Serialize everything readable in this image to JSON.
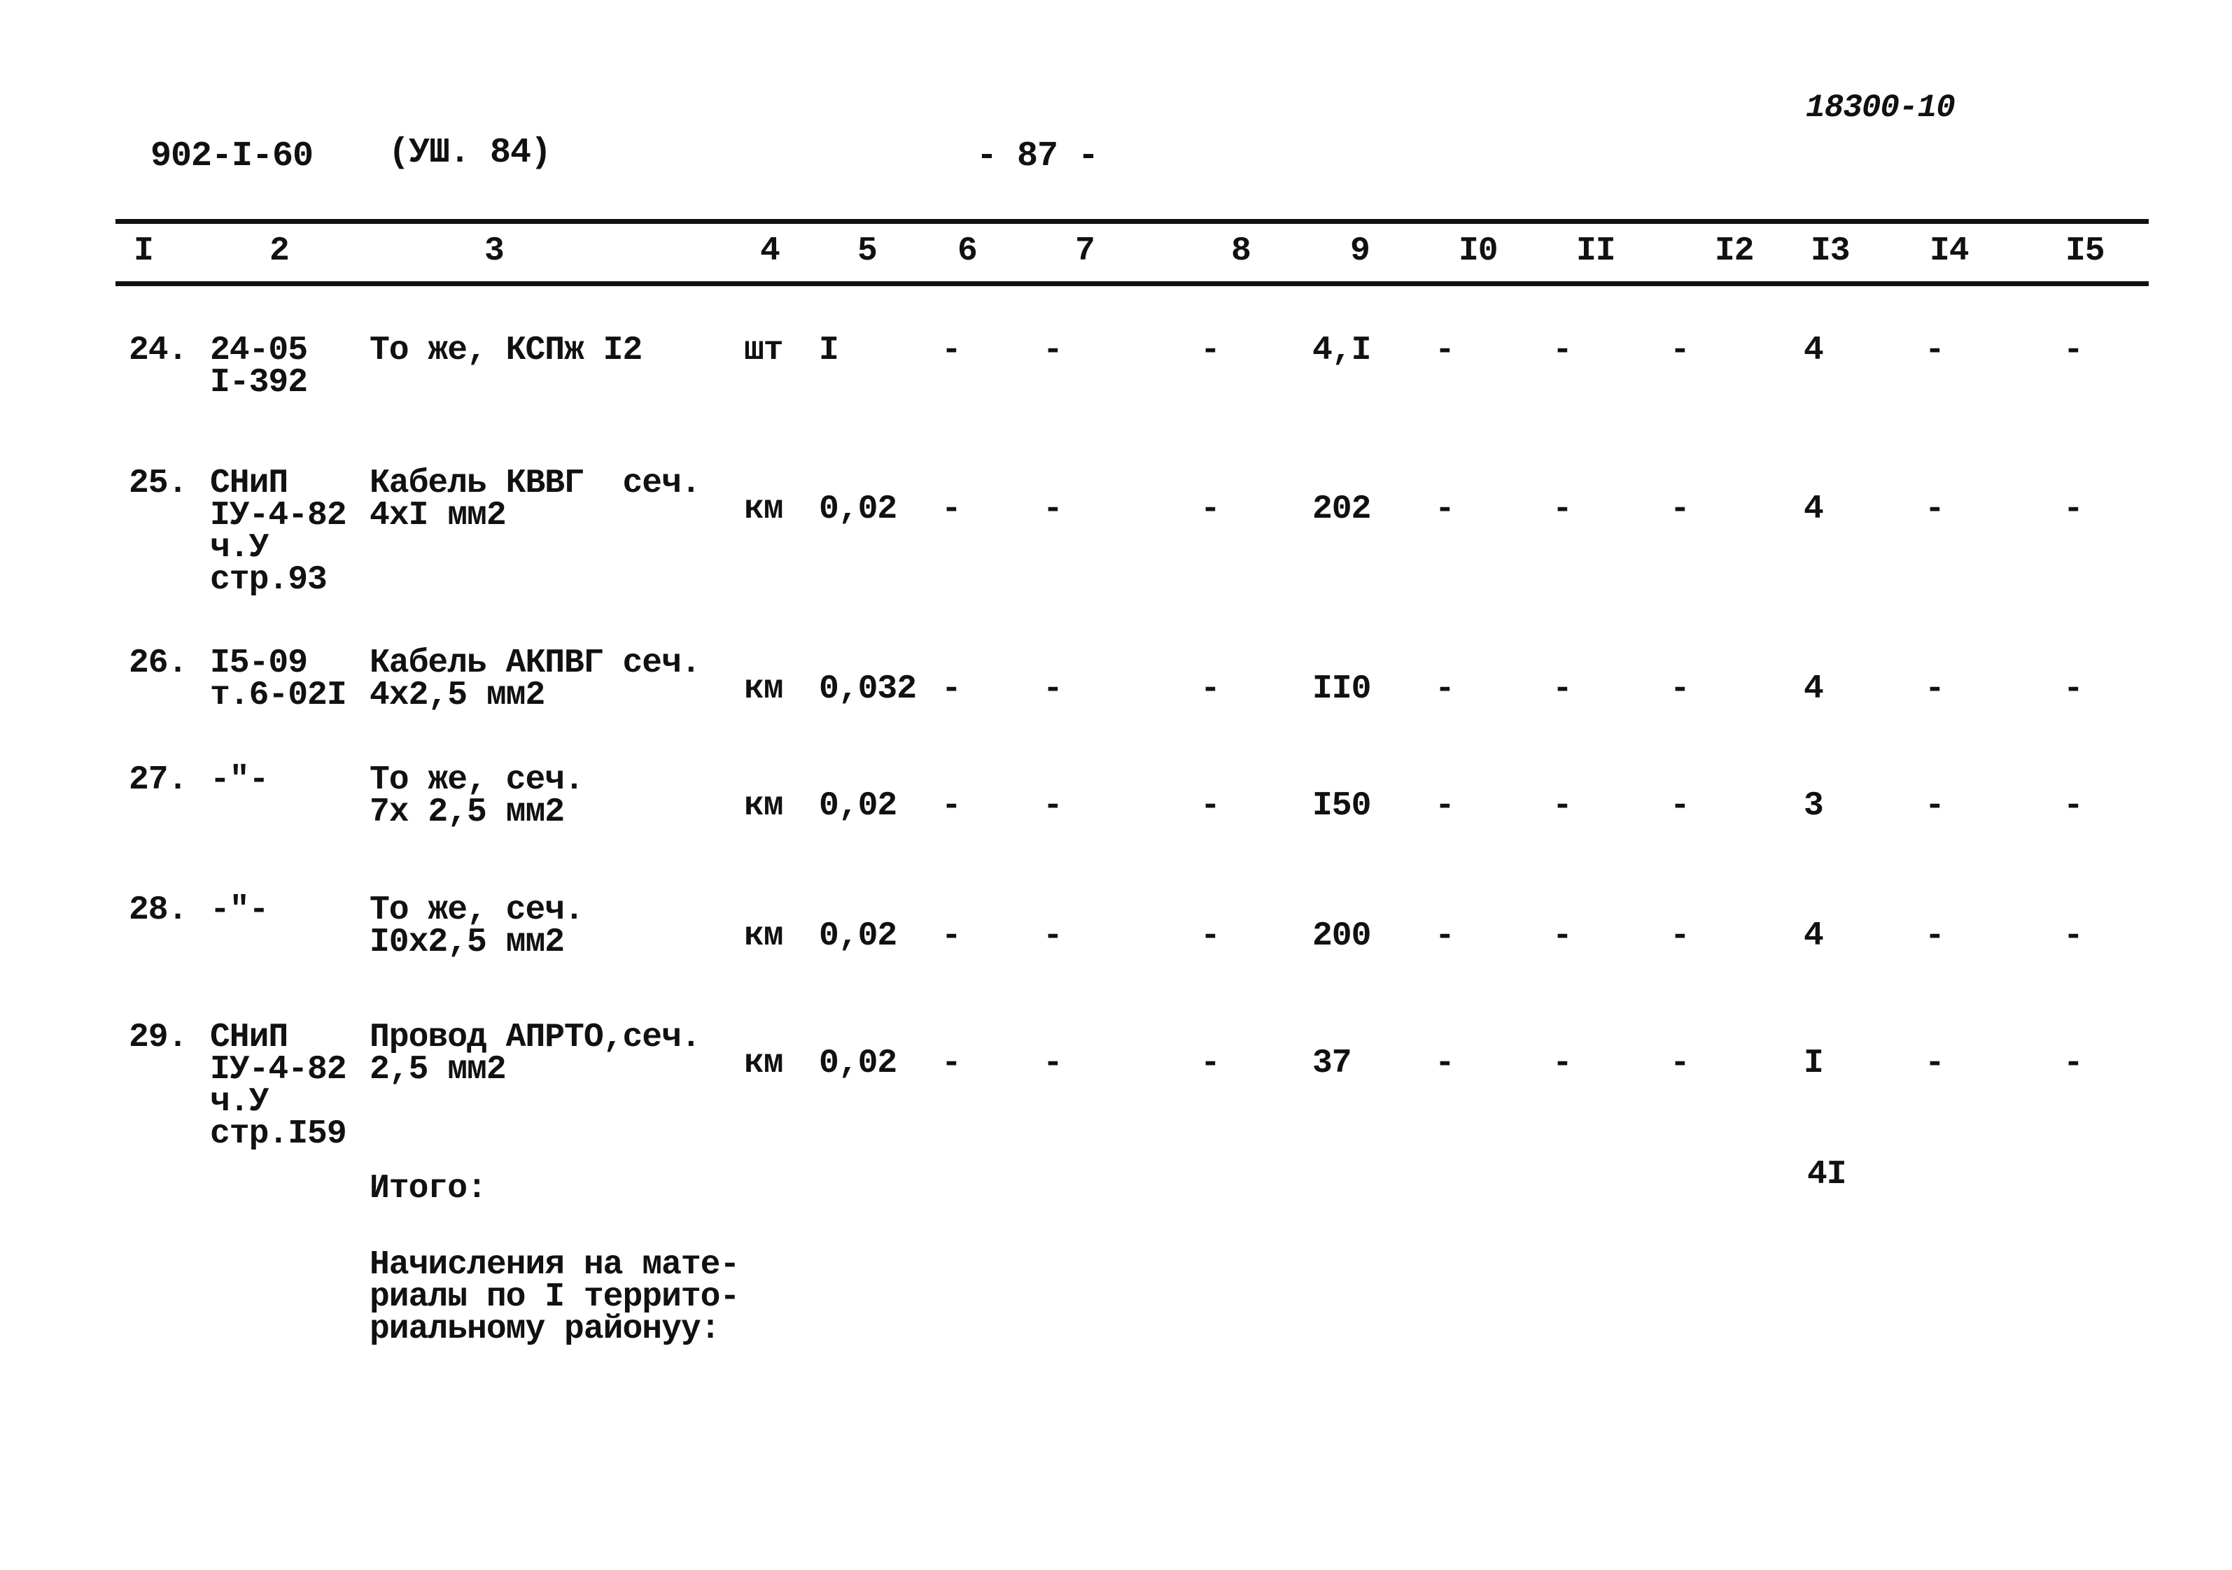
{
  "header": {
    "doc_code": "902-I-60",
    "issue": "(УШ. 84)",
    "page_number": "- 87 -",
    "archive_number": "18300-10"
  },
  "columns": [
    "I",
    "2",
    "3",
    "4",
    "5",
    "6",
    "7",
    "8",
    "9",
    "I0",
    "II",
    "I2",
    "I3",
    "I4",
    "I5"
  ],
  "rows": [
    {
      "no": "24.",
      "ref": "24-05\nI-392",
      "name": "То же, КСПж I2",
      "unit": "шт",
      "c5": "I",
      "c6": "-",
      "c7": "-",
      "c8": "-",
      "c9": "4,I",
      "c10": "-",
      "c11": "-",
      "c12": "-",
      "c13": "4",
      "c14": "-",
      "c15": "-"
    },
    {
      "no": "25.",
      "ref": "СНиП\nIУ-4-82\nч.У\nстр.93",
      "name": "Кабель КВВГ  сеч.\n4хI мм2",
      "unit": "км",
      "c5": "0,02",
      "c6": "-",
      "c7": "-",
      "c8": "-",
      "c9": "202",
      "c10": "-",
      "c11": "-",
      "c12": "-",
      "c13": "4",
      "c14": "-",
      "c15": "-"
    },
    {
      "no": "26.",
      "ref": "I5-09\nт.6-02I",
      "name": "Кабель АКПВГ сеч.\n4х2,5 мм2",
      "unit": "км",
      "c5": "0,032",
      "c6": "-",
      "c7": "-",
      "c8": "-",
      "c9": "II0",
      "c10": "-",
      "c11": "-",
      "c12": "-",
      "c13": "4",
      "c14": "-",
      "c15": "-"
    },
    {
      "no": "27.",
      "ref": "-\"-",
      "name": "То же, сеч.\n7х 2,5 мм2",
      "unit": "км",
      "c5": "0,02",
      "c6": "-",
      "c7": "-",
      "c8": "-",
      "c9": "I50",
      "c10": "-",
      "c11": "-",
      "c12": "-",
      "c13": "3",
      "c14": "-",
      "c15": "-"
    },
    {
      "no": "28.",
      "ref": "-\"-",
      "name": "То же, сеч.\nI0х2,5 мм2",
      "unit": "км",
      "c5": "0,02",
      "c6": "-",
      "c7": "-",
      "c8": "-",
      "c9": "200",
      "c10": "-",
      "c11": "-",
      "c12": "-",
      "c13": "4",
      "c14": "-",
      "c15": "-"
    },
    {
      "no": "29.",
      "ref": "СНиП\nIУ-4-82\nч.У\nстр.I59",
      "name": "Провод АПРТО,сеч.\n2,5 мм2",
      "unit": "км",
      "c5": "0,02",
      "c6": "-",
      "c7": "-",
      "c8": "-",
      "c9": "37",
      "c10": "-",
      "c11": "-",
      "c12": "-",
      "c13": "I",
      "c14": "-",
      "c15": "-"
    }
  ],
  "total": {
    "label": "Итого:",
    "c13": "4I"
  },
  "note": "Начисления на мате-\nриалы по I террито-\nриальному районуу:"
}
